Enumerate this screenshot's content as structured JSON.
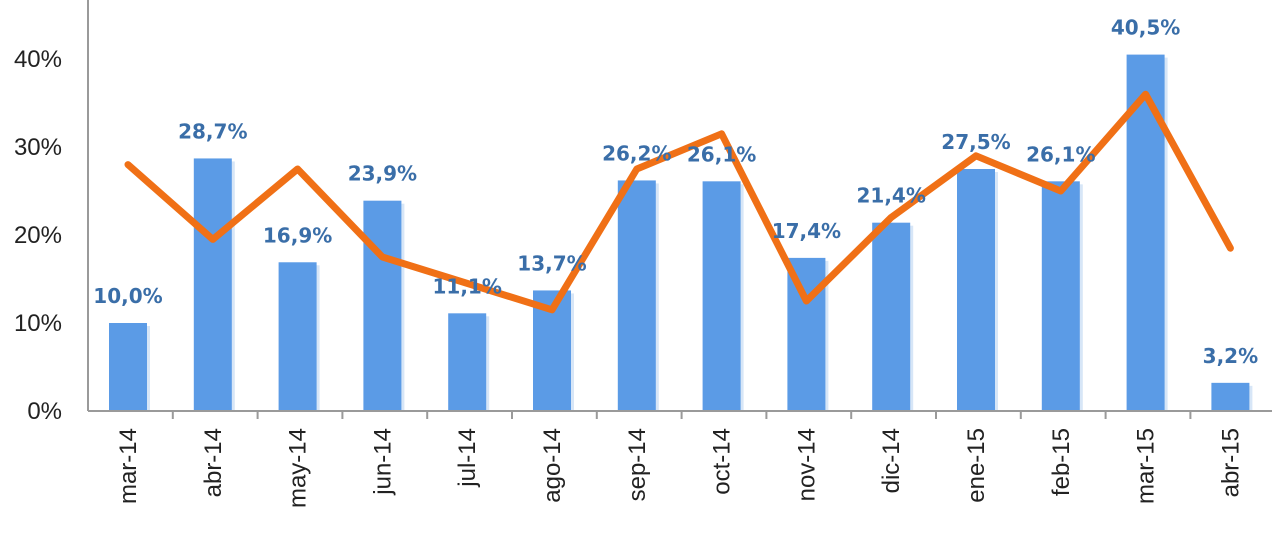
{
  "chart_data": {
    "type": "bar",
    "categories": [
      "mar-14",
      "abr-14",
      "may-14",
      "jun-14",
      "jul-14",
      "ago-14",
      "sep-14",
      "oct-14",
      "nov-14",
      "dic-14",
      "ene-15",
      "feb-15",
      "mar-15",
      "abr-15"
    ],
    "series": [
      {
        "type": "bar",
        "values": [
          10.0,
          28.7,
          16.9,
          23.9,
          11.1,
          13.7,
          26.2,
          26.1,
          17.4,
          21.4,
          27.5,
          26.1,
          40.5,
          3.2
        ],
        "data_labels": [
          "10,0%",
          "28,7%",
          "16,9%",
          "23,9%",
          "11,1%",
          "13,7%",
          "26,2%",
          "26,1%",
          "17,4%",
          "21,4%",
          "27,5%",
          "26,1%",
          "40,5%",
          "3,2%"
        ],
        "color": "#5b9be6"
      },
      {
        "type": "line",
        "values": [
          28,
          19.5,
          27.5,
          17.5,
          14.5,
          11.5,
          27.5,
          31.5,
          12.5,
          22,
          29,
          25,
          36,
          18.5
        ],
        "color": "#f07016"
      }
    ],
    "y_ticks": [
      "0%",
      "10%",
      "20%",
      "30%",
      "40%"
    ],
    "ylim": [
      0,
      45
    ],
    "xlabel": "",
    "ylabel": "",
    "grid": false,
    "data_label_color": "#3a6ea8"
  }
}
